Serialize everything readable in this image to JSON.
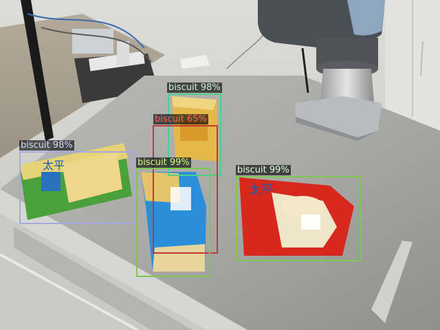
{
  "detections": [
    {
      "id": "biscuit-1",
      "label": "biscuit 98%",
      "color": "#c8f0d8"
    },
    {
      "id": "biscuit-2",
      "label": "biscuit 65%",
      "color": "#ff6060"
    },
    {
      "id": "biscuit-3",
      "label": "biscuit 98%",
      "color": "#d8d8ff"
    },
    {
      "id": "biscuit-4",
      "label": "biscuit 99%",
      "color": "#c8ff80"
    },
    {
      "id": "biscuit-5",
      "label": "biscuit 99%",
      "color": "#e8ffe0"
    }
  ],
  "colors": {
    "box_green": "#7ec850",
    "box_teal": "#4ecf8a",
    "box_red": "#c03a3a",
    "box_lavender": "#a8a8e0"
  },
  "packaging_text": [
    "太平"
  ]
}
